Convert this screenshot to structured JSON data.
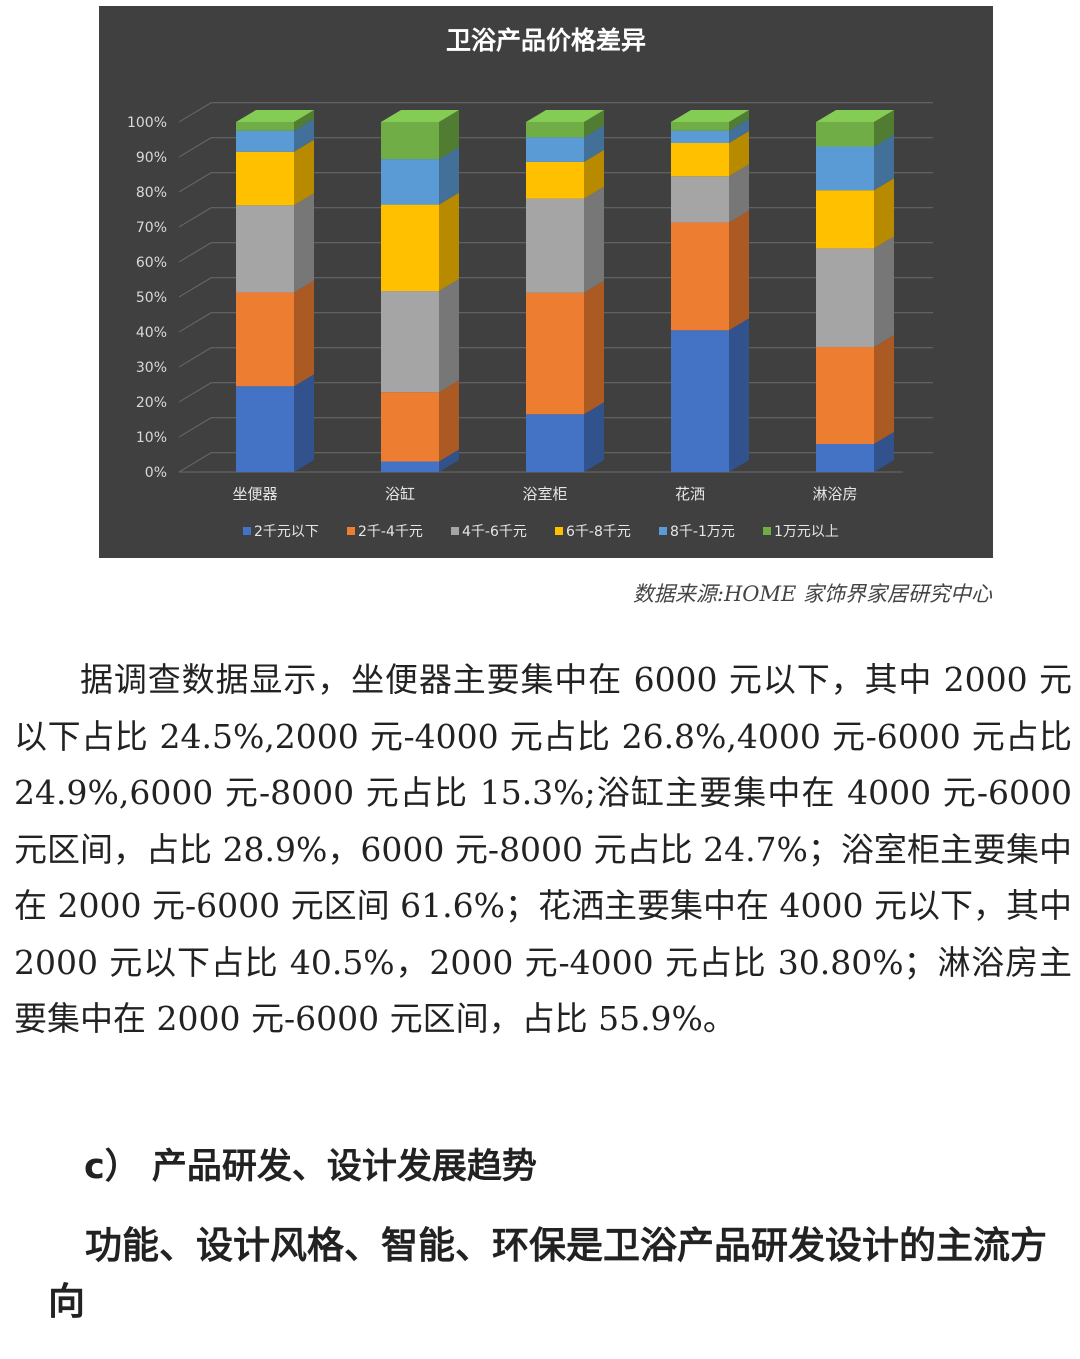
{
  "chart_data": {
    "type": "bar",
    "stacked": true,
    "percent_stacked": true,
    "three_d": true,
    "title": "卫浴产品价格差异",
    "categories": [
      "坐便器",
      "浴缸",
      "浴室柜",
      "花洒",
      "淋浴房"
    ],
    "series": [
      {
        "name": "2千元以下",
        "color": "#4472C4",
        "values": [
          24.5,
          3.0,
          16.5,
          40.5,
          8.0
        ]
      },
      {
        "name": "2千-4千元",
        "color": "#ED7D31",
        "values": [
          26.8,
          19.8,
          34.7,
          30.8,
          27.7
        ]
      },
      {
        "name": "4千-6千元",
        "color": "#A5A5A5",
        "values": [
          24.9,
          28.9,
          26.9,
          13.2,
          28.2
        ]
      },
      {
        "name": "6千-8千元",
        "color": "#FFC000",
        "values": [
          15.3,
          24.7,
          10.5,
          9.5,
          16.6
        ]
      },
      {
        "name": "8千-1万元",
        "color": "#5B9BD5",
        "values": [
          6.0,
          13.0,
          7.0,
          3.5,
          12.5
        ]
      },
      {
        "name": "1万元以上",
        "color": "#70AD47",
        "values": [
          2.5,
          10.6,
          4.4,
          2.5,
          7.0
        ]
      }
    ],
    "y_ticks": [
      "0%",
      "10%",
      "20%",
      "30%",
      "40%",
      "50%",
      "60%",
      "70%",
      "80%",
      "90%",
      "100%"
    ],
    "ylim": [
      0,
      100
    ],
    "grid": true,
    "legend": "bottom",
    "background": "#404040"
  },
  "source_note": "数据来源:HOME 家饰界家居研究中心",
  "body_paragraph": "据调查数据显示，坐便器主要集中在 6000 元以下，其中 2000 元以下占比 24.5%,2000 元-4000 元占比 26.8%,4000 元-6000 元占比 24.9%,6000 元-8000 元占比 15.3%;浴缸主要集中在 4000 元-6000 元区间，占比 28.9%，6000 元-8000 元占比 24.7%；浴室柜主要集中在 2000 元-6000 元区间 61.6%；花洒主要集中在 4000 元以下，其中 2000 元以下占比 40.5%，2000 元-4000 元占比 30.80%；淋浴房主要集中在 2000 元-6000 元区间，占比 55.9%。",
  "section_heading": "c） 产品研发、设计发展趋势",
  "sub_heading": "功能、设计风格、智能、环保是卫浴产品研发设计的主流方向"
}
